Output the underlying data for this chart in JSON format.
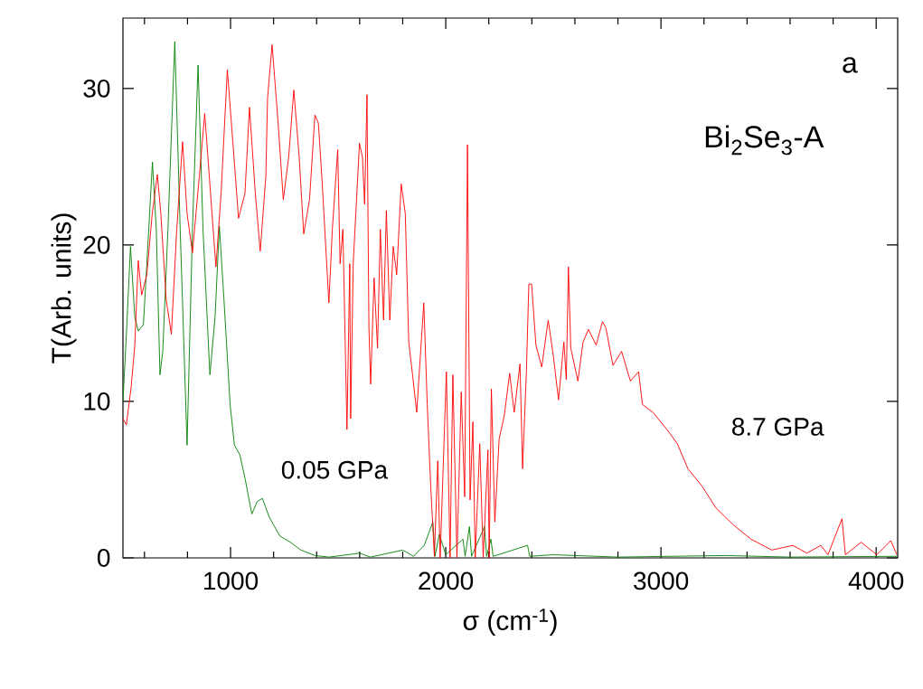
{
  "chart_data": {
    "type": "line",
    "xlabel": "σ (cm$^{-1}$)",
    "ylabel": "T(Arb. units)",
    "annotations": [
      "a",
      "Bi$_{2}$Se$_{3}$-A"
    ],
    "xlim": [
      500,
      4100
    ],
    "ylim": [
      0,
      34.5
    ],
    "xticks": [
      {
        "value": 600,
        "label": null
      },
      {
        "value": 800,
        "label": null
      },
      1000,
      {
        "value": 1200,
        "label": null
      },
      {
        "value": 1400,
        "label": null
      },
      {
        "value": 1600,
        "label": null
      },
      {
        "value": 1800,
        "label": null
      },
      2000,
      {
        "value": 2200,
        "label": null
      },
      {
        "value": 2400,
        "label": null
      },
      {
        "value": 2600,
        "label": null
      },
      {
        "value": 2800,
        "label": null
      },
      3000,
      {
        "value": 3200,
        "label": null
      },
      {
        "value": 3400,
        "label": null
      },
      {
        "value": 3600,
        "label": null
      },
      {
        "value": 3800,
        "label": null
      },
      4000
    ],
    "yticks": [
      0,
      10,
      20,
      30
    ],
    "grid": false,
    "legend": false,
    "series": [
      {
        "name": "0.05 GPa",
        "color": "#008000",
        "x": [
          500,
          516,
          535,
          555,
          571,
          595,
          611,
          637,
          655,
          672,
          685,
          709,
          741,
          766,
          798,
          823,
          849,
          872,
          904,
          928,
          948,
          969,
          998,
          1018,
          1043,
          1067,
          1099,
          1124,
          1148,
          1180,
          1229,
          1278,
          1327,
          1392,
          1457,
          1600,
          1650,
          1800,
          1850,
          1900,
          1940,
          1950,
          1970,
          2000,
          2080,
          2090,
          2110,
          2120,
          2180,
          2190,
          2210,
          2220,
          2380,
          2390,
          2500,
          2800,
          3300,
          3600,
          4100
        ],
        "values": [
          10,
          14.3,
          19.9,
          15.4,
          14.5,
          14.9,
          18.8,
          25.3,
          21,
          11.7,
          13.2,
          21,
          33,
          21,
          7.2,
          21,
          31.5,
          21,
          11.7,
          15.4,
          21.2,
          16.6,
          9.8,
          7.2,
          6.6,
          5.1,
          2.8,
          3.6,
          3.8,
          2.6,
          1.4,
          1.0,
          0.5,
          0.15,
          0.05,
          0.3,
          0.05,
          0.5,
          0.1,
          0.8,
          2.3,
          0.1,
          1.5,
          0.2,
          1.2,
          0.1,
          2.0,
          0.1,
          2.0,
          0.1,
          1.2,
          0.1,
          0.8,
          0.1,
          0.2,
          0.05,
          0.15,
          0.05,
          0.1
        ]
      },
      {
        "name": "8.7 GPa",
        "color": "#ff0000",
        "x": [
          500,
          516,
          538,
          555,
          571,
          587,
          611,
          636,
          660,
          676,
          701,
          725,
          750,
          777,
          798,
          823,
          855,
          880,
          907,
          932,
          956,
          985,
          1010,
          1037,
          1067,
          1088,
          1115,
          1138,
          1164,
          1172,
          1193,
          1221,
          1245,
          1270,
          1294,
          1319,
          1340,
          1367,
          1392,
          1408,
          1424,
          1457,
          1473,
          1498,
          1509,
          1522,
          1541,
          1554,
          1558,
          1570,
          1599,
          1613,
          1623,
          1634,
          1643,
          1651,
          1667,
          1683,
          1696,
          1711,
          1724,
          1740,
          1756,
          1772,
          1793,
          1812,
          1828,
          1845,
          1865,
          1898,
          1914,
          1930,
          1947,
          1963,
          1974,
          2003,
          2020,
          2033,
          2052,
          2072,
          2088,
          2101,
          2113,
          2126,
          2137,
          2158,
          2174,
          2196,
          2202,
          2212,
          2228,
          2248,
          2272,
          2297,
          2318,
          2345,
          2357,
          2375,
          2386,
          2399,
          2419,
          2446,
          2476,
          2500,
          2524,
          2549,
          2560,
          2570,
          2581,
          2614,
          2638,
          2663,
          2699,
          2728,
          2744,
          2777,
          2817,
          2858,
          2896,
          2914,
          2963,
          3028,
          3076,
          3125,
          3190,
          3255,
          3337,
          3418,
          3515,
          3613,
          3678,
          3743,
          3776,
          3841,
          3857,
          3930,
          4003,
          4068,
          4096
        ],
        "values": [
          8.9,
          8.5,
          10.9,
          13.6,
          19.0,
          16.8,
          18.1,
          22,
          24.5,
          22,
          16.5,
          14.3,
          21,
          26.6,
          22,
          19.5,
          24.4,
          28.4,
          23.3,
          18.6,
          23.3,
          31.2,
          26.7,
          21.7,
          23.3,
          28.8,
          23.3,
          19.6,
          24.4,
          29.4,
          32.8,
          27.8,
          22.9,
          25.6,
          29.9,
          25.6,
          20.7,
          22.9,
          28.3,
          27.8,
          24.4,
          16.3,
          21,
          26.1,
          18.8,
          21,
          8.2,
          18.8,
          8.9,
          18.8,
          26.5,
          25.6,
          22.6,
          29.6,
          14.7,
          11.1,
          17.9,
          13.4,
          21,
          15.2,
          22.2,
          15.2,
          19.9,
          18.1,
          23.9,
          22,
          13.8,
          11.8,
          9.3,
          16.3,
          9.8,
          4.6,
          0.1,
          6.2,
          0,
          11.9,
          0,
          11.7,
          0,
          10.6,
          3.9,
          26.4,
          3.7,
          8.7,
          0,
          7.3,
          0,
          6.9,
          0,
          10.8,
          2.3,
          7.6,
          9.1,
          11.8,
          9.3,
          12.4,
          5.7,
          12,
          17.5,
          17.5,
          13.6,
          12.2,
          15.2,
          12.9,
          10.1,
          13.8,
          11.4,
          18.6,
          13.4,
          11.3,
          13.8,
          14.6,
          13.6,
          15.1,
          14.7,
          12.3,
          13.2,
          11.3,
          11.9,
          9.8,
          9.3,
          8.2,
          7.3,
          5.7,
          4.6,
          3.2,
          2.1,
          1.2,
          0.5,
          0.8,
          0.3,
          0.8,
          0.2,
          2.5,
          0.2,
          1.0,
          0.2,
          1.1,
          0.2
        ]
      }
    ]
  }
}
